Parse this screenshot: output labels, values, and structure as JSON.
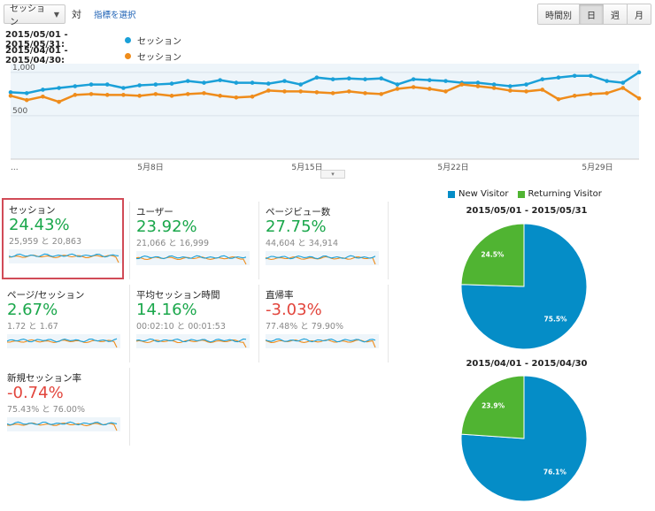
{
  "toolbar": {
    "metric_select": "セッション",
    "vs_label": "対",
    "select_metric_link": "指標を選択",
    "granularity": [
      "時間別",
      "日",
      "週",
      "月"
    ],
    "granularity_active": 1
  },
  "legend": [
    {
      "range": "2015/05/01 - 2015/05/31:",
      "name": "セッション",
      "color": "#1aa0d8"
    },
    {
      "range": "2015/04/01 - 2015/04/30:",
      "name": "セッション",
      "color": "#ef8c1b"
    }
  ],
  "chart_data": {
    "type": "line",
    "x_tick_labels": [
      "...",
      "5月8日",
      "5月15日",
      "5月22日",
      "5月29日"
    ],
    "y_tick_labels": [
      "1,000",
      "500"
    ],
    "ylim": [
      0,
      1100
    ],
    "grid": true,
    "series": [
      {
        "color": "#1aa0d8",
        "values": [
          770,
          760,
          800,
          820,
          840,
          860,
          860,
          820,
          850,
          860,
          870,
          900,
          880,
          910,
          880,
          880,
          870,
          900,
          860,
          940,
          920,
          930,
          920,
          930,
          860,
          920,
          910,
          900,
          880,
          880,
          860,
          840,
          860,
          920,
          940,
          960,
          960,
          900,
          880,
          1000
        ]
      },
      {
        "color": "#ef8c1b",
        "values": [
          730,
          680,
          720,
          660,
          740,
          750,
          740,
          740,
          730,
          750,
          730,
          750,
          760,
          730,
          710,
          720,
          790,
          780,
          780,
          770,
          760,
          780,
          760,
          750,
          810,
          830,
          810,
          780,
          860,
          840,
          820,
          790,
          780,
          800,
          690,
          730,
          750,
          760,
          820,
          700
        ]
      }
    ]
  },
  "collapse_handle": "▾",
  "scorecards": [
    {
      "title": "セッション",
      "pct": "24.43%",
      "dir": "up",
      "vals": "25,959 と 20,863",
      "selected": true
    },
    {
      "title": "ユーザー",
      "pct": "23.92%",
      "dir": "up",
      "vals": "21,066 と 16,999"
    },
    {
      "title": "ページビュー数",
      "pct": "27.75%",
      "dir": "up",
      "vals": "44,604 と 34,914"
    },
    {
      "title": "ページ/セッション",
      "pct": "2.67%",
      "dir": "up",
      "vals": "1.72 と 1.67"
    },
    {
      "title": "平均セッション時間",
      "pct": "14.16%",
      "dir": "up",
      "vals": "00:02:10 と 00:01:53"
    },
    {
      "title": "直帰率",
      "pct": "-3.03%",
      "dir": "down",
      "vals": "77.48% と 79.90%"
    },
    {
      "title": "新規セッション率",
      "pct": "-0.74%",
      "dir": "down",
      "vals": "75.43% と 76.00%"
    }
  ],
  "pie_legend": [
    {
      "label": "New Visitor",
      "color": "#058dc7"
    },
    {
      "label": "Returning Visitor",
      "color": "#50b432"
    }
  ],
  "pies": [
    {
      "title": "2015/05/01 - 2015/05/31",
      "slices": [
        {
          "label": "75.5%",
          "value": 75.5
        },
        {
          "label": "24.5%",
          "value": 24.5
        }
      ]
    },
    {
      "title": "2015/04/01 - 2015/04/30",
      "slices": [
        {
          "label": "76.1%",
          "value": 76.1
        },
        {
          "label": "23.9%",
          "value": 23.9
        }
      ]
    }
  ]
}
